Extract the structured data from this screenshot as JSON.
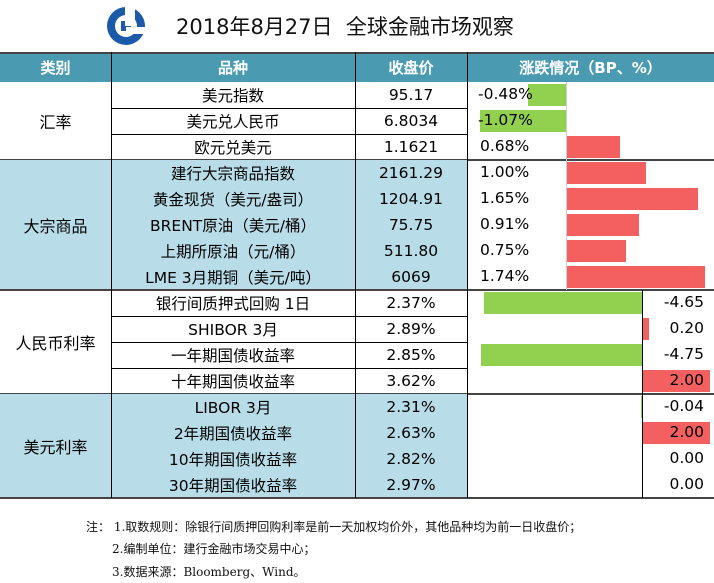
{
  "header": {
    "date": "2018年8月27日",
    "title": "全球金融市场观察"
  },
  "columns": {
    "category": "类别",
    "name": "品种",
    "close": "收盘价",
    "change": "涨跌情况（BP、%）"
  },
  "categories": [
    {
      "label": "汇率",
      "rows": 3
    },
    {
      "label": "大宗商品",
      "rows": 5
    },
    {
      "label": "人民币利率",
      "rows": 4
    },
    {
      "label": "美元利率",
      "rows": 4
    }
  ],
  "rows": [
    {
      "name": "美元指数",
      "close": "95.17",
      "change_text": "-0.48%",
      "change": -0.48,
      "unit": "%"
    },
    {
      "name": "美元兑人民币",
      "close": "6.8034",
      "change_text": "-1.07%",
      "change": -1.07,
      "unit": "%"
    },
    {
      "name": "欧元兑美元",
      "close": "1.1621",
      "change_text": "0.68%",
      "change": 0.68,
      "unit": "%"
    },
    {
      "name": "建行大宗商品指数",
      "close": "2161.29",
      "change_text": "1.00%",
      "change": 1.0,
      "unit": "%"
    },
    {
      "name": "黄金现货（美元/盎司）",
      "close": "1204.91",
      "change_text": "1.65%",
      "change": 1.65,
      "unit": "%"
    },
    {
      "name": "BRENT原油（美元/桶）",
      "close": "75.75",
      "change_text": "0.91%",
      "change": 0.91,
      "unit": "%"
    },
    {
      "name": "上期所原油（元/桶）",
      "close": "511.80",
      "change_text": "0.75%",
      "change": 0.75,
      "unit": "%"
    },
    {
      "name": "LME 3月期铜（美元/吨）",
      "close": "6069",
      "change_text": "1.74%",
      "change": 1.74,
      "unit": "%"
    },
    {
      "name": "银行间质押式回购 1日",
      "close": "2.37%",
      "change_text": "-4.65",
      "change": -4.65,
      "unit": "bp"
    },
    {
      "name": "SHIBOR 3月",
      "close": "2.89%",
      "change_text": "0.20",
      "change": 0.2,
      "unit": "bp"
    },
    {
      "name": "一年期国债收益率",
      "close": "2.85%",
      "change_text": "-4.75",
      "change": -4.75,
      "unit": "bp"
    },
    {
      "name": "十年期国债收益率",
      "close": "3.62%",
      "change_text": "2.00",
      "change": 2.0,
      "unit": "bp"
    },
    {
      "name": "LIBOR 3月",
      "close": "2.31%",
      "change_text": "-0.04",
      "change": -0.04,
      "unit": "bp"
    },
    {
      "name": "2年期国债收益率",
      "close": "2.63%",
      "change_text": "2.00",
      "change": 2.0,
      "unit": "bp"
    },
    {
      "name": "10年期国债收益率",
      "close": "2.82%",
      "change_text": "0.00",
      "change": 0.0,
      "unit": "bp"
    },
    {
      "name": "30年期国债收益率",
      "close": "2.97%",
      "change_text": "0.00",
      "change": 0.0,
      "unit": "bp"
    }
  ],
  "notes": [
    "注：  1.取数规则：除银行间质押回购利率是前一天加权均价外，其他品种均为前一日收盘价；",
    "2.编制单位：建行金融市场交易中心；",
    "3.数据来源：Bloomberg、Wind。"
  ],
  "colors": {
    "header": "#4a9bb1",
    "light_blue": "#b8dde9",
    "positive": "#f46060",
    "negative": "#92d050",
    "logo": "#1a5aa8"
  },
  "icons": {
    "logo": "ccb-logo-icon"
  }
}
